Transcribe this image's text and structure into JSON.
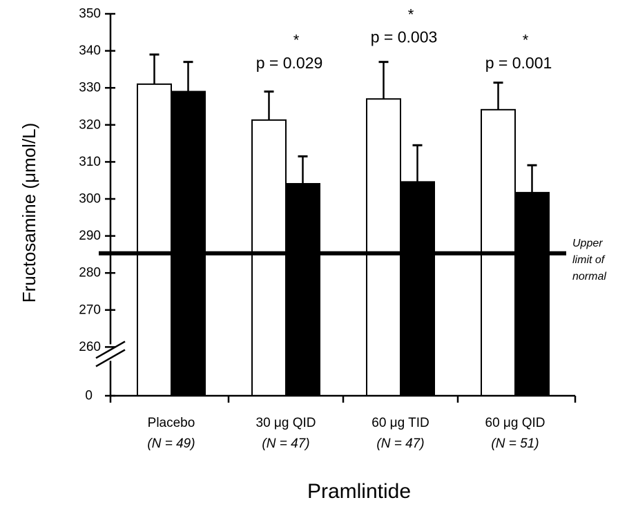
{
  "chart_data": {
    "type": "bar",
    "title": "",
    "ylabel": "Fructosamine (μmol/L)",
    "xlabel": "Pramlintide",
    "ylim": [
      260,
      350
    ],
    "y_ticks": [
      "350",
      "340",
      "330",
      "320",
      "310",
      "300",
      "290",
      "280",
      "270",
      "260"
    ],
    "y_break_label": "0",
    "categories": [
      {
        "label": "Placebo",
        "n": "(N = 49)"
      },
      {
        "label": "30 μg QID",
        "n": "(N = 47)"
      },
      {
        "label": "60 μg TID",
        "n": "(N = 47)"
      },
      {
        "label": "60 μg QID",
        "n": "(N = 51)"
      }
    ],
    "series": [
      {
        "fill": "open",
        "color": "#ffffff",
        "values": [
          331,
          321.3,
          327,
          324.1
        ],
        "error": [
          8,
          7.7,
          10,
          7.3
        ]
      },
      {
        "fill": "filled",
        "color": "#000000",
        "values": [
          329,
          304.1,
          304.6,
          301.7
        ],
        "error": [
          8,
          7.4,
          9.9,
          7.4
        ]
      }
    ],
    "annotations": [
      {
        "category": 1,
        "star": "*",
        "text": "p = 0.029",
        "star_y": 341.5,
        "text_y": 335.3
      },
      {
        "category": 2,
        "star": "*",
        "text": "p = 0.003",
        "star_y": 348.4,
        "text_y": 342.3
      },
      {
        "category": 3,
        "star": "*",
        "text": "p = 0.001",
        "star_y": 341.5,
        "text_y": 335.3
      }
    ],
    "reference_line": {
      "value": 285.3,
      "label_lines": [
        "Upper",
        "limit of",
        "normal"
      ]
    },
    "legend": "none",
    "grid": false
  }
}
